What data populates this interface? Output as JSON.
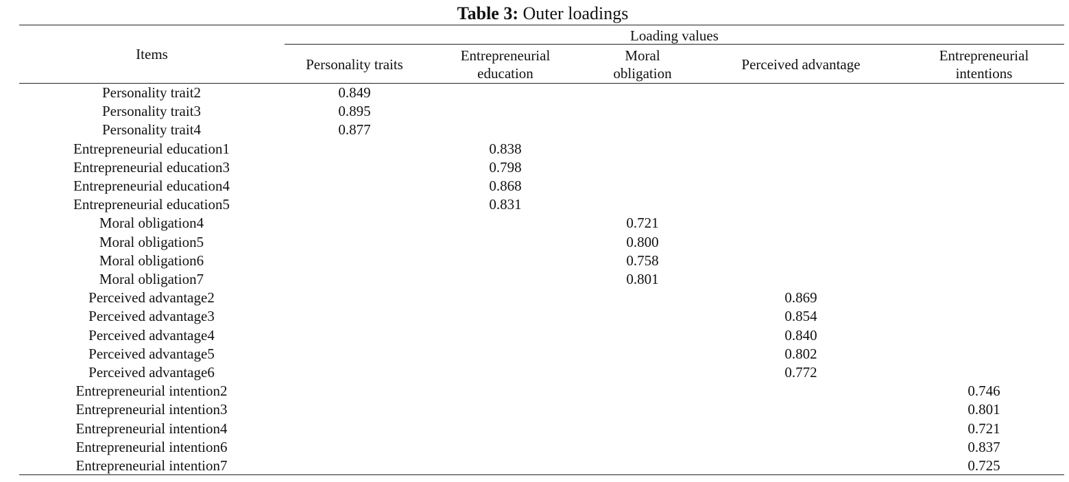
{
  "title": {
    "label": "Table 3:",
    "text": "Outer loadings"
  },
  "table": {
    "items_header": "Items",
    "group_header": "Loading values",
    "columns": [
      "Personality traits",
      "Entrepreneurial education",
      "Moral obligation",
      "Perceived advantage",
      "Entrepreneurial intentions"
    ],
    "rows": [
      [
        "Personality trait2",
        "0.849",
        null,
        null,
        null,
        null
      ],
      [
        "Personality trait3",
        "0.895",
        null,
        null,
        null,
        null
      ],
      [
        "Personality trait4",
        "0.877",
        null,
        null,
        null,
        null
      ],
      [
        "Entrepreneurial education1",
        null,
        "0.838",
        null,
        null,
        null
      ],
      [
        "Entrepreneurial education3",
        null,
        "0.798",
        null,
        null,
        null
      ],
      [
        "Entrepreneurial education4",
        null,
        "0.868",
        null,
        null,
        null
      ],
      [
        "Entrepreneurial education5",
        null,
        "0.831",
        null,
        null,
        null
      ],
      [
        "Moral obligation4",
        null,
        null,
        "0.721",
        null,
        null
      ],
      [
        "Moral obligation5",
        null,
        null,
        "0.800",
        null,
        null
      ],
      [
        "Moral obligation6",
        null,
        null,
        "0.758",
        null,
        null
      ],
      [
        "Moral obligation7",
        null,
        null,
        "0.801",
        null,
        null
      ],
      [
        "Perceived advantage2",
        null,
        null,
        null,
        "0.869",
        null
      ],
      [
        "Perceived advantage3",
        null,
        null,
        null,
        "0.854",
        null
      ],
      [
        "Perceived advantage4",
        null,
        null,
        null,
        "0.840",
        null
      ],
      [
        "Perceived advantage5",
        null,
        null,
        null,
        "0.802",
        null
      ],
      [
        "Perceived advantage6",
        null,
        null,
        null,
        "0.772",
        null
      ],
      [
        "Entrepreneurial intention2",
        null,
        null,
        null,
        null,
        "0.746"
      ],
      [
        "Entrepreneurial intention3",
        null,
        null,
        null,
        null,
        "0.801"
      ],
      [
        "Entrepreneurial intention4",
        null,
        null,
        null,
        null,
        "0.721"
      ],
      [
        "Entrepreneurial intention6",
        null,
        null,
        null,
        null,
        "0.837"
      ],
      [
        "Entrepreneurial intention7",
        null,
        null,
        null,
        null,
        "0.725"
      ]
    ]
  }
}
